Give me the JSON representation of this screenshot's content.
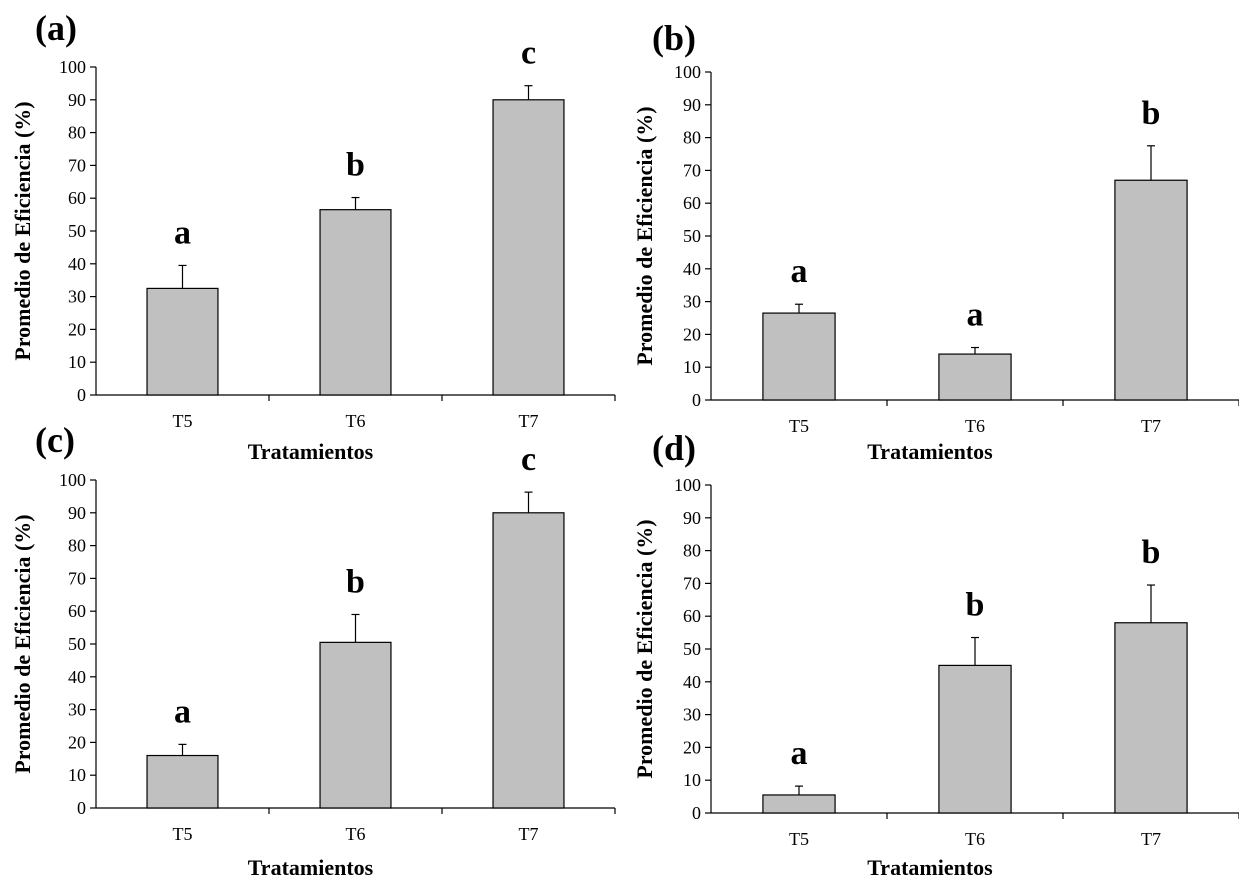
{
  "chart_data": [
    {
      "panel_label": "(a)",
      "type": "bar",
      "categories": [
        "T5",
        "T6",
        "T7"
      ],
      "values": [
        32.5,
        56.5,
        90
      ],
      "errors": [
        7,
        3.7,
        4.3
      ],
      "significance": [
        "a",
        "b",
        "c"
      ],
      "xlabel": "Tratamientos",
      "ylabel": "Promedio de Eficiencia (%)",
      "ylim": [
        0,
        100
      ],
      "yticks": [
        "0",
        "10",
        "20",
        "30",
        "40",
        "50",
        "60",
        "70",
        "80",
        "90",
        "100"
      ],
      "grid": false,
      "bar_color": "#c0c0c0"
    },
    {
      "panel_label": "(b)",
      "type": "bar",
      "categories": [
        "T5",
        "T6",
        "T7"
      ],
      "values": [
        26.5,
        14,
        67
      ],
      "errors": [
        2.7,
        2,
        10.5
      ],
      "significance": [
        "a",
        "a",
        "b"
      ],
      "xlabel": "Tratamientos",
      "ylabel": "Promedio de Eficiencia (%)",
      "ylim": [
        0,
        100
      ],
      "yticks": [
        "0",
        "10",
        "20",
        "30",
        "40",
        "50",
        "60",
        "70",
        "80",
        "90",
        "100"
      ],
      "grid": false,
      "bar_color": "#c0c0c0"
    },
    {
      "panel_label": "(c)",
      "type": "bar",
      "categories": [
        "T5",
        "T6",
        "T7"
      ],
      "values": [
        16,
        50.5,
        90
      ],
      "errors": [
        3.4,
        8.5,
        6.3
      ],
      "significance": [
        "a",
        "b",
        "c"
      ],
      "xlabel": "Tratamientos",
      "ylabel": "Promedio de Eficiencia (%)",
      "ylim": [
        0,
        100
      ],
      "yticks": [
        "0",
        "10",
        "20",
        "30",
        "40",
        "50",
        "60",
        "70",
        "80",
        "90",
        "100"
      ],
      "grid": false,
      "bar_color": "#c0c0c0"
    },
    {
      "panel_label": "(d)",
      "type": "bar",
      "categories": [
        "T5",
        "T6",
        "T7"
      ],
      "values": [
        5.5,
        45,
        58
      ],
      "errors": [
        2.7,
        8.5,
        11.5
      ],
      "significance": [
        "a",
        "b",
        "b"
      ],
      "xlabel": "Tratamientos",
      "ylabel": "Promedio de Eficiencia (%)",
      "ylim": [
        0,
        100
      ],
      "yticks": [
        "0",
        "10",
        "20",
        "30",
        "40",
        "50",
        "60",
        "70",
        "80",
        "90",
        "100"
      ],
      "grid": false,
      "bar_color": "#c0c0c0"
    }
  ]
}
